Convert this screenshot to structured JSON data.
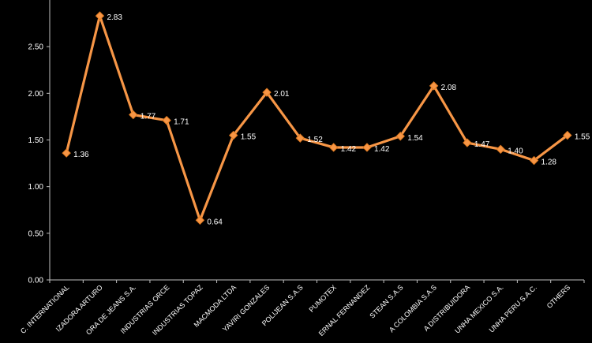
{
  "chart_data": {
    "type": "line",
    "title": "",
    "xlabel": "",
    "ylabel": "",
    "ylim": [
      0,
      3.0
    ],
    "y_ticks": [
      "0.00",
      "0.50",
      "1.00",
      "1.50",
      "2.00",
      "2.50"
    ],
    "grid": false,
    "legend": "none",
    "categories": [
      "C. INTERNATIONAL",
      "IZADORA ARTURO",
      "ORA DE JEANS S.A.",
      "INDUSTRIAS ORCE",
      "INDUSTRIAS TOPAZ",
      "MACMODA LTDA",
      "YAVIRI GONZALES",
      "POLIJEAN S.A.S",
      "PUMOTEX",
      "ERNAL FERNANDEZ",
      "STEAN S.A.S",
      "A COLOMBIA S.A.S",
      "A DISTRIBUIDORA",
      "UNHA MEXICO S.A.",
      "UNHA PERU S.A.C.",
      "OTHERS"
    ],
    "values": [
      1.36,
      2.83,
      1.77,
      1.71,
      0.64,
      1.55,
      2.01,
      1.52,
      1.42,
      1.42,
      1.54,
      2.08,
      1.47,
      1.4,
      1.28,
      1.55
    ],
    "data_labels": [
      "1.36",
      "2.83",
      "1.77",
      "1.71",
      "0.64",
      "1.55",
      "2.01",
      "1.52",
      "1.42",
      "1.42",
      "1.54",
      "2.08",
      "1.47",
      "1.40",
      "1.28",
      "1.55"
    ],
    "colors": {
      "line": "#f79646",
      "marker": "#f79646",
      "marker_outline": "#e07a20",
      "axis": "#bfbfbf",
      "text": "#ffffff",
      "background": "#000000"
    }
  }
}
